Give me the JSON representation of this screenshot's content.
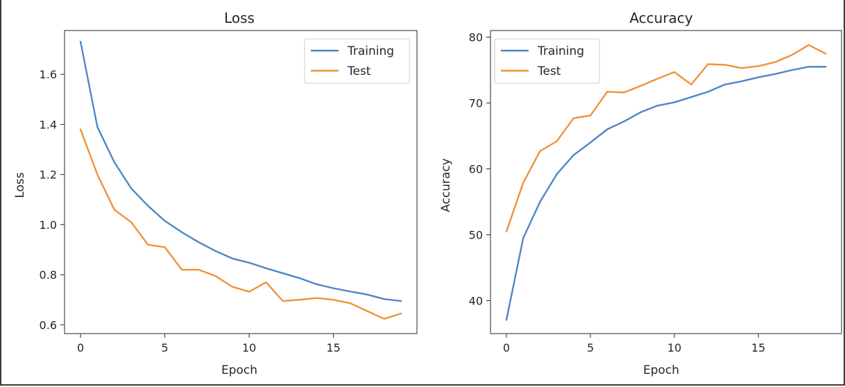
{
  "colors": {
    "training": "#4e86c4",
    "test": "#f0913a"
  },
  "chart_data": [
    {
      "type": "line",
      "title": "Loss",
      "xlabel": "Epoch",
      "ylabel": "Loss",
      "xlim": [
        -0.95,
        19.95
      ],
      "ylim": [
        0.565,
        1.775
      ],
      "xticks": [
        0,
        5,
        10,
        15
      ],
      "yticks": [
        0.6,
        0.8,
        1.0,
        1.2,
        1.4,
        1.6
      ],
      "ytick_labels": [
        "0.6",
        "0.8",
        "1.0",
        "1.2",
        "1.4",
        "1.6"
      ],
      "xtick_labels": [
        "0",
        "5",
        "10",
        "15"
      ],
      "legend": "top-right",
      "x": [
        0,
        1,
        2,
        3,
        4,
        5,
        6,
        7,
        8,
        9,
        10,
        11,
        12,
        13,
        14,
        15,
        16,
        17,
        18,
        19
      ],
      "series": [
        {
          "name": "Training",
          "values": [
            1.73,
            1.39,
            1.25,
            1.145,
            1.075,
            1.015,
            0.97,
            0.93,
            0.895,
            0.865,
            0.848,
            0.826,
            0.806,
            0.786,
            0.762,
            0.746,
            0.733,
            0.721,
            0.703,
            0.695
          ]
        },
        {
          "name": "Test",
          "values": [
            1.38,
            1.2,
            1.06,
            1.01,
            0.92,
            0.91,
            0.82,
            0.82,
            0.795,
            0.752,
            0.732,
            0.77,
            0.695,
            0.7,
            0.707,
            0.7,
            0.686,
            0.655,
            0.624,
            0.645
          ]
        }
      ]
    },
    {
      "type": "line",
      "title": "Accuracy",
      "xlabel": "Epoch",
      "ylabel": "Accuracy",
      "xlim": [
        -0.95,
        19.95
      ],
      "ylim": [
        35.0,
        81.0
      ],
      "xticks": [
        0,
        5,
        10,
        15
      ],
      "yticks": [
        40,
        50,
        60,
        70,
        80
      ],
      "ytick_labels": [
        "40",
        "50",
        "60",
        "70",
        "80"
      ],
      "xtick_labels": [
        "0",
        "5",
        "10",
        "15"
      ],
      "legend": "top-left",
      "x": [
        0,
        1,
        2,
        3,
        4,
        5,
        6,
        7,
        8,
        9,
        10,
        11,
        12,
        13,
        14,
        15,
        16,
        17,
        18,
        19
      ],
      "series": [
        {
          "name": "Training",
          "values": [
            37.1,
            49.5,
            55.0,
            59.2,
            62.1,
            64.0,
            66.0,
            67.2,
            68.6,
            69.6,
            70.1,
            70.9,
            71.7,
            72.8,
            73.3,
            73.9,
            74.4,
            75.0,
            75.5,
            75.5
          ]
        },
        {
          "name": "Test",
          "values": [
            50.5,
            57.9,
            62.7,
            64.2,
            67.7,
            68.1,
            71.7,
            71.6,
            72.6,
            73.7,
            74.7,
            72.8,
            75.9,
            75.8,
            75.3,
            75.6,
            76.2,
            77.3,
            78.8,
            77.5
          ]
        }
      ]
    }
  ]
}
